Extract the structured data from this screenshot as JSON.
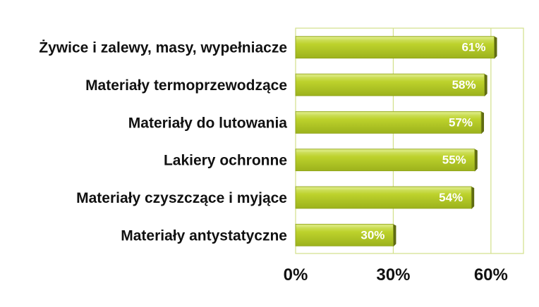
{
  "chart_data": {
    "type": "bar",
    "orientation": "horizontal",
    "categories": [
      "Żywice i zalewy, masy, wypełniacze",
      "Materiały termoprzewodzące",
      "Materiały do lutowania",
      "Lakiery ochronne",
      "Materiały czyszczące i myjące",
      "Materiały antystatyczne"
    ],
    "values": [
      61,
      58,
      57,
      55,
      54,
      30
    ],
    "value_labels": [
      "61%",
      "58%",
      "57%",
      "55%",
      "54%",
      "30%"
    ],
    "xticks": [
      0,
      30,
      60
    ],
    "xtick_labels": [
      "0%",
      "30%",
      "60%"
    ],
    "xlim": [
      0,
      70
    ],
    "grid": true,
    "colors": {
      "bar": "#bcd12a",
      "bar_top": "#d8e77a",
      "bar_shadow": "#5f6b12",
      "grid": "#d2e08a"
    }
  }
}
